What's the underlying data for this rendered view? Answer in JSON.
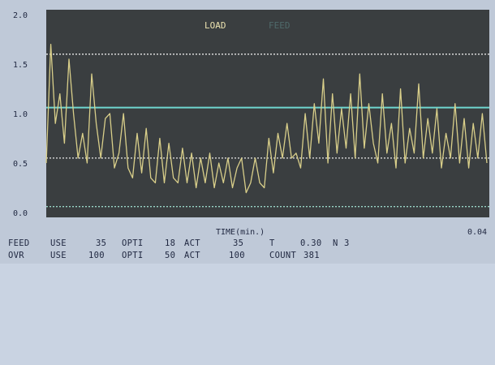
{
  "chart_data": {
    "type": "line",
    "legend": [
      {
        "name": "LOAD",
        "color": "#ece3b0"
      },
      {
        "name": "FEED",
        "color": "#4f6a6a"
      }
    ],
    "xlabel": "TIME(min.)",
    "x_end_label": "0.04",
    "ylim": [
      0.0,
      2.0
    ],
    "yticks": [
      "2.0",
      "1.5",
      "1.0",
      "0.5",
      "0.0"
    ],
    "reference_lines": [
      {
        "value": 1.6,
        "style": "dotted",
        "color": "#e8e8e8"
      },
      {
        "value": 1.06,
        "style": "solid",
        "color": "#6fd7d0"
      },
      {
        "value": 0.55,
        "style": "dotted",
        "color": "#e8e8e8"
      },
      {
        "value": 0.06,
        "style": "dotted",
        "color": "#9bd6c8"
      }
    ],
    "series": [
      {
        "name": "LOAD",
        "color": "#d9cf8a",
        "values": [
          0.5,
          1.7,
          0.9,
          1.2,
          0.7,
          1.55,
          1.0,
          0.55,
          0.8,
          0.5,
          1.4,
          0.9,
          0.55,
          0.95,
          1.0,
          0.45,
          0.6,
          1.0,
          0.45,
          0.35,
          0.8,
          0.4,
          0.85,
          0.35,
          0.3,
          0.75,
          0.3,
          0.7,
          0.35,
          0.3,
          0.65,
          0.3,
          0.6,
          0.25,
          0.55,
          0.3,
          0.6,
          0.25,
          0.5,
          0.3,
          0.55,
          0.25,
          0.45,
          0.55,
          0.2,
          0.3,
          0.55,
          0.3,
          0.25,
          0.75,
          0.4,
          0.8,
          0.55,
          0.9,
          0.55,
          0.6,
          0.45,
          1.0,
          0.55,
          1.1,
          0.7,
          1.35,
          0.5,
          1.2,
          0.6,
          1.05,
          0.65,
          1.2,
          0.55,
          1.4,
          0.65,
          1.1,
          0.7,
          0.5,
          1.2,
          0.6,
          0.9,
          0.45,
          1.25,
          0.5,
          0.85,
          0.6,
          1.3,
          0.55,
          0.95,
          0.6,
          1.05,
          0.45,
          0.8,
          0.55,
          1.1,
          0.5,
          0.95,
          0.45,
          0.9,
          0.55,
          1.0,
          0.5
        ]
      }
    ]
  },
  "status": {
    "row1": {
      "label": "FEED",
      "use_label": "USE",
      "use_value": "35",
      "opti_label": "OPTI",
      "opti_value": "18",
      "act_label": "ACT",
      "act_value": "35",
      "t_label": "T",
      "t_value": "0.30",
      "n_label": "N",
      "n_value": "3"
    },
    "row2": {
      "label": "OVR",
      "use_label": "USE",
      "use_value": "100",
      "opti_label": "OPTI",
      "opti_value": "50",
      "act_label": "ACT",
      "act_value": "100",
      "count_label": "COUNT",
      "count_value": "381"
    }
  }
}
